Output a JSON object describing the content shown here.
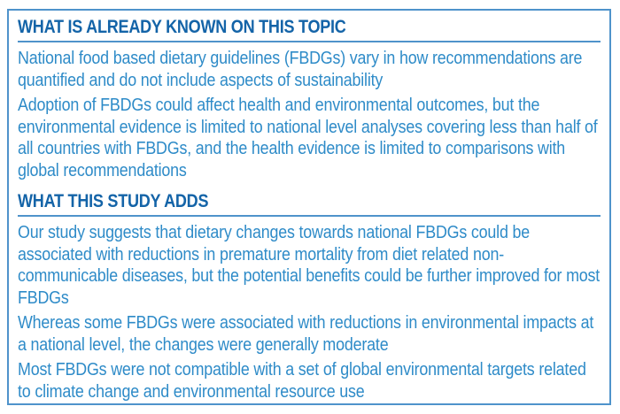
{
  "colors": {
    "heading_blue": "#1464a8",
    "body_blue": "#2e8bc8",
    "rule_blue": "#4f93cb",
    "border_blue": "#4f93cb",
    "background": "#ffffff"
  },
  "box": {
    "sections": [
      {
        "heading": "WHAT IS ALREADY KNOWN ON THIS TOPIC",
        "paragraphs": [
          "National food based dietary guidelines (FBDGs) vary in how recommendations are quantified and do not include aspects of sustainability",
          "Adoption of FBDGs could affect health and environmental outcomes, but the environmental evidence is limited to national level analyses covering less than half of all countries with FBDGs, and the health evidence is limited to comparisons with global recommendations"
        ]
      },
      {
        "heading": "WHAT THIS STUDY ADDS",
        "paragraphs": [
          "Our study suggests that dietary changes towards national FBDGs could be associated with reductions in premature mortality from diet related non-communicable diseases, but the potential benefits could be further improved for most FBDGs",
          "Whereas some FBDGs were associated with reductions in environmental impacts at a national level, the changes were generally moderate",
          "Most FBDGs were not compatible with a set of global environmental targets related to climate change and environmental resource use"
        ]
      }
    ]
  }
}
